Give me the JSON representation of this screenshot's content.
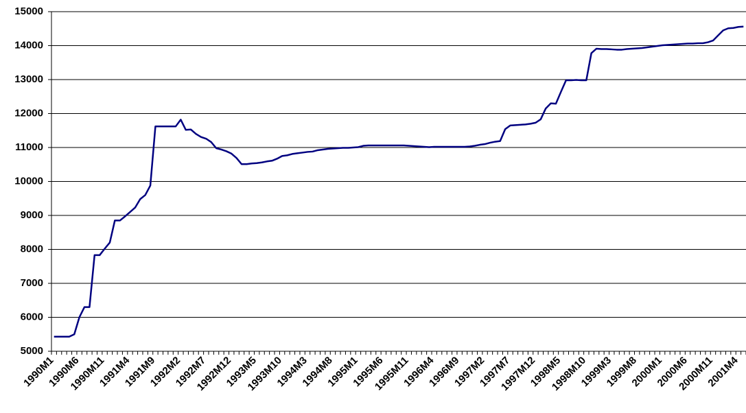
{
  "chart_data": {
    "type": "line",
    "color": "#000080",
    "ylim": [
      5000,
      15000
    ],
    "yticks": [
      5000,
      6000,
      7000,
      8000,
      9000,
      10000,
      11000,
      12000,
      13000,
      14000,
      15000
    ],
    "grid": true,
    "categories": [
      "1990M1",
      null,
      null,
      null,
      null,
      "1990M6",
      null,
      null,
      null,
      null,
      "1990M11",
      null,
      null,
      null,
      null,
      "1991M4",
      null,
      null,
      null,
      null,
      "1991M9",
      null,
      null,
      null,
      null,
      "1992M2",
      null,
      null,
      null,
      null,
      "1992M7",
      null,
      null,
      null,
      null,
      "1992M12",
      null,
      null,
      null,
      null,
      "1993M5",
      null,
      null,
      null,
      null,
      "1993M10",
      null,
      null,
      null,
      null,
      "1994M3",
      null,
      null,
      null,
      null,
      "1994M8",
      null,
      null,
      null,
      null,
      "1995M1",
      null,
      null,
      null,
      null,
      "1995M6",
      null,
      null,
      null,
      null,
      "1995M11",
      null,
      null,
      null,
      null,
      "1996M4",
      null,
      null,
      null,
      null,
      "1996M9",
      null,
      null,
      null,
      null,
      "1997M2",
      null,
      null,
      null,
      null,
      "1997M7",
      null,
      null,
      null,
      null,
      "1997M12",
      null,
      null,
      null,
      null,
      "1998M5",
      null,
      null,
      null,
      null,
      "1998M10",
      null,
      null,
      null,
      null,
      "1999M3",
      null,
      null,
      null,
      null,
      "1999M8",
      null,
      null,
      null,
      null,
      "2000M1",
      null,
      null,
      null,
      null,
      "2000M6",
      null,
      null,
      null,
      null,
      "2000M11",
      null,
      null,
      null,
      null,
      "2001M4",
      null
    ],
    "values": [
      5430,
      5430,
      5430,
      5430,
      5500,
      6000,
      6300,
      6300,
      7830,
      7830,
      8020,
      8200,
      8850,
      8850,
      8970,
      9100,
      9230,
      9480,
      9600,
      9880,
      11620,
      11620,
      11620,
      11620,
      11620,
      11820,
      11520,
      11530,
      11400,
      11310,
      11260,
      11160,
      10980,
      10940,
      10890,
      10820,
      10690,
      10510,
      10510,
      10530,
      10540,
      10560,
      10590,
      10610,
      10670,
      10750,
      10770,
      10810,
      10830,
      10850,
      10870,
      10880,
      10920,
      10940,
      10960,
      10970,
      10980,
      10990,
      10990,
      11000,
      11010,
      11050,
      11060,
      11060,
      11060,
      11060,
      11060,
      11060,
      11060,
      11060,
      11050,
      11040,
      11030,
      11020,
      11010,
      11020,
      11020,
      11020,
      11020,
      11020,
      11020,
      11020,
      11030,
      11050,
      11080,
      11100,
      11140,
      11170,
      11190,
      11540,
      11650,
      11660,
      11670,
      11680,
      11700,
      11730,
      11830,
      12150,
      12300,
      12290,
      12640,
      12980,
      12980,
      12990,
      12980,
      12980,
      13780,
      13910,
      13900,
      13900,
      13890,
      13880,
      13880,
      13900,
      13910,
      13920,
      13930,
      13950,
      13970,
      13990,
      14010,
      14020,
      14030,
      14040,
      14050,
      14060,
      14060,
      14070,
      14070,
      14100,
      14150,
      14300,
      14450,
      14510,
      14520,
      14550,
      14560
    ]
  }
}
